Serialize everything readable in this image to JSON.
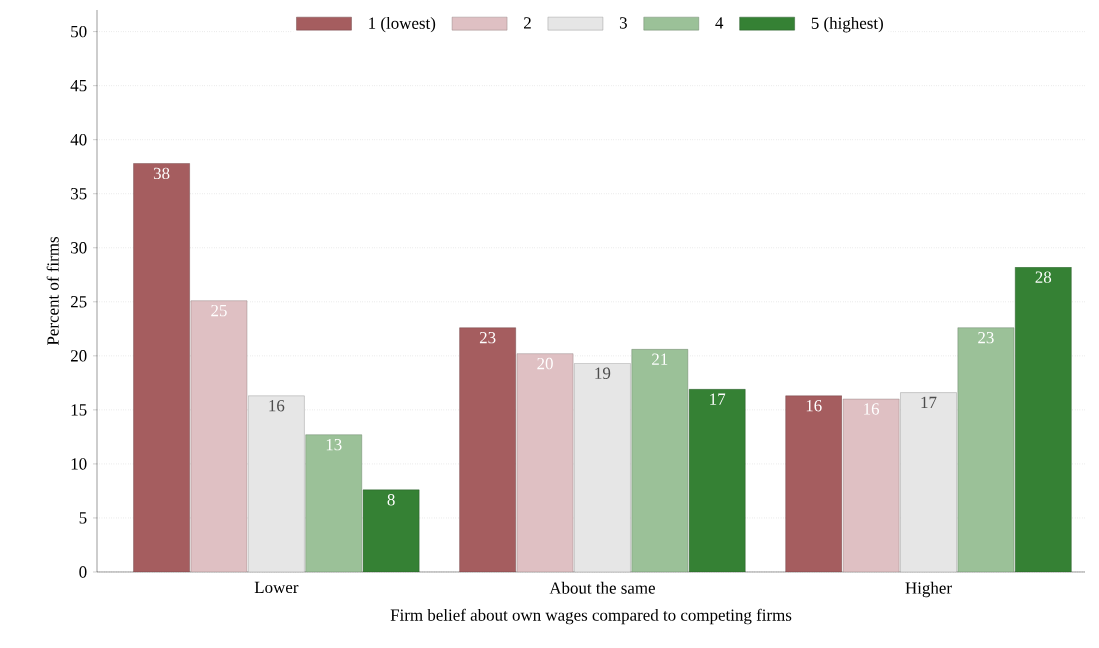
{
  "chart_data": {
    "type": "bar",
    "xlabel": "Firm belief about own wages compared to competing firms",
    "ylabel": "Percent of firms",
    "categories": [
      "Lower",
      "About the same",
      "Higher"
    ],
    "series": [
      {
        "name": "1 (lowest)",
        "color": "#a55d5f",
        "values": [
          37.8,
          22.6,
          16.3
        ],
        "value_labels": [
          "38",
          "23",
          "16"
        ]
      },
      {
        "name": "2",
        "color": "#dfc0c3",
        "values": [
          25.1,
          20.2,
          16.0
        ],
        "value_labels": [
          "25",
          "20",
          "16"
        ]
      },
      {
        "name": "3",
        "color": "#e6e6e6",
        "values": [
          16.3,
          19.3,
          16.6
        ],
        "value_labels": [
          "16",
          "19",
          "17"
        ]
      },
      {
        "name": "4",
        "color": "#9bc198",
        "values": [
          12.7,
          20.6,
          22.6
        ],
        "value_labels": [
          "13",
          "21",
          "23"
        ]
      },
      {
        "name": "5 (highest)",
        "color": "#358134",
        "values": [
          7.6,
          16.9,
          28.2
        ],
        "value_labels": [
          "8",
          "17",
          "28"
        ]
      }
    ],
    "ylim": [
      0,
      52
    ],
    "yticks": [
      0,
      5,
      10,
      15,
      20,
      25,
      30,
      35,
      40,
      45,
      50
    ],
    "grid": "y",
    "legend": "top"
  }
}
